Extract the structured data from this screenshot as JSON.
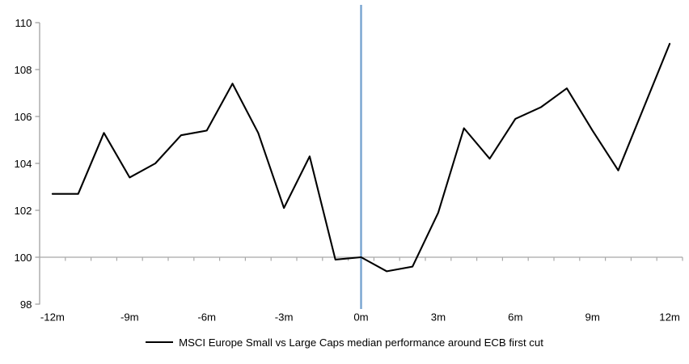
{
  "chart_data": {
    "type": "line",
    "title": "",
    "xlabel": "",
    "ylabel": "",
    "x": [
      -12,
      -11,
      -10,
      -9,
      -8,
      -7,
      -6,
      -5,
      -4,
      -3,
      -2,
      -1,
      0,
      1,
      2,
      3,
      4,
      5,
      6,
      7,
      8,
      9,
      10,
      11,
      12
    ],
    "series": [
      {
        "name": "MSCI Europe Small vs Large Caps median performance around ECB first cut",
        "values": [
          102.7,
          102.7,
          105.3,
          103.4,
          104.0,
          105.2,
          105.4,
          107.4,
          105.3,
          102.1,
          104.3,
          99.9,
          100.0,
          99.4,
          99.6,
          101.9,
          105.5,
          104.2,
          105.9,
          106.4,
          107.2,
          105.4,
          103.7,
          106.4,
          109.1
        ],
        "color": "#000000"
      }
    ],
    "ylim": [
      98,
      110
    ],
    "yticks": [
      98,
      100,
      102,
      104,
      106,
      108,
      110
    ],
    "xtick_months": [
      -12,
      -9,
      -6,
      -3,
      0,
      3,
      6,
      9,
      12
    ],
    "xtick_labels": [
      "-12m",
      "-9m",
      "-6m",
      "-3m",
      "0m",
      "3m",
      "6m",
      "9m",
      "12m"
    ],
    "event_line": {
      "x": 0,
      "color": "#77A4D0"
    },
    "baseline_value": 100,
    "grid": false,
    "legend_position": "bottom"
  },
  "colors": {
    "value_axis": "#9A9A9A",
    "category_axis": "#A8A8A8",
    "tick_label": "#000000",
    "background": "#FFFFFF"
  }
}
